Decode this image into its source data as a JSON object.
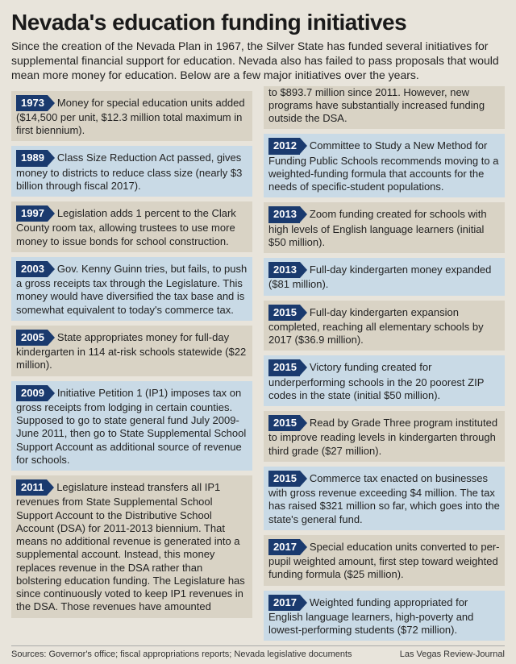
{
  "headline": "Nevada's education funding initiatives",
  "intro": "Since the creation of the Nevada Plan in 1967, the Silver State has funded several initiatives for supplemental financial support for education. Nevada also has failed to pass proposals that would mean more money for education. Below are a few major initiatives over the years.",
  "colors": {
    "page_bg": "#e8e4db",
    "band_a": "#d9d3c5",
    "band_b": "#c9dae6",
    "year_tag_bg": "#1a3a6e",
    "year_tag_text": "#ffffff",
    "text": "#222222"
  },
  "left": [
    {
      "year": "1973",
      "band": "a",
      "text": "Money for special education units added ($14,500 per unit, $12.3 million total maximum in first biennium)."
    },
    {
      "year": "1989",
      "band": "b",
      "text": "Class Size Reduction Act passed, gives money to districts to reduce class size (nearly $3 billion through fiscal 2017)."
    },
    {
      "year": "1997",
      "band": "a",
      "text": "Legislation adds 1 percent to the Clark County room tax, allowing trustees to use more money to issue bonds for school construction."
    },
    {
      "year": "2003",
      "band": "b",
      "text": "Gov. Kenny Guinn tries, but fails, to push a gross receipts tax through the Legislature. This money would have diversified the tax base and is somewhat equivalent to today's commerce tax."
    },
    {
      "year": "2005",
      "band": "a",
      "text": "State appropriates money for full-day kindergarten in 114 at-risk schools statewide ($22 million)."
    },
    {
      "year": "2009",
      "band": "b",
      "text": "Initiative Petition 1 (IP1) imposes tax on gross receipts from lodging in certain counties. Supposed to go to state general fund July 2009-June 2011, then go to State Supplemental School Support Account as additional source of revenue for schools."
    },
    {
      "year": "2011",
      "band": "a",
      "text": "Legislature instead transfers all IP1 revenues from State Supplemental School Support Account to the Distributive School Account (DSA) for 2011-2013 biennium. That means no additional revenue is generated into a supplemental account. Instead, this money replaces revenue in the DSA rather than bolstering education funding. The Legislature has since continuously voted to keep IP1 revenues in the DSA. Those revenues have amounted"
    }
  ],
  "right": [
    {
      "continuation": true,
      "band": "a",
      "text": "to $893.7 million since 2011. However, new programs have substantially increased funding outside the DSA."
    },
    {
      "year": "2012",
      "band": "b",
      "text": "Committee to Study a New Method for Funding Public Schools recommends moving to a weighted-funding formula that accounts for the needs of specific-student populations."
    },
    {
      "year": "2013",
      "band": "a",
      "text": "Zoom funding created for schools with high levels of English language learners (initial $50 million)."
    },
    {
      "year": "2013",
      "band": "b",
      "text": "Full-day kindergarten money expanded ($81 million)."
    },
    {
      "year": "2015",
      "band": "a",
      "text": "Full-day kindergarten expansion completed, reaching all elementary schools by 2017 ($36.9 million)."
    },
    {
      "year": "2015",
      "band": "b",
      "text": "Victory funding created for underperforming schools in the 20 poorest ZIP codes in the state (initial $50 million)."
    },
    {
      "year": "2015",
      "band": "a",
      "text": "Read by Grade Three program instituted to improve reading levels in kindergarten through third grade ($27 million)."
    },
    {
      "year": "2015",
      "band": "b",
      "text": "Commerce tax enacted on businesses with gross revenue exceeding $4 million. The tax has raised $321 million so far, which goes into the state's general fund."
    },
    {
      "year": "2017",
      "band": "a",
      "text": "Special education units converted to per-pupil weighted amount, first step toward weighted funding formula ($25 million)."
    },
    {
      "year": "2017",
      "band": "b",
      "text": "Weighted funding appropriated for English language learners, high-poverty and lowest-performing students ($72 million)."
    }
  ],
  "footer": {
    "sources": "Sources: Governor's office; fiscal appropriations reports; Nevada legislative documents",
    "credit": "Las Vegas Review-Journal"
  }
}
